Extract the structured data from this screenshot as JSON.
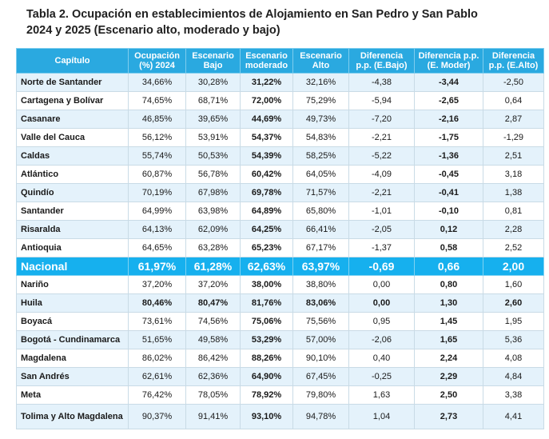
{
  "title_line1": "Tabla 2. Ocupación en establecimientos de Alojamiento en San Pedro y San Pablo",
  "title_line2": "2024 y 2025 (Escenario alto, moderado y bajo)",
  "headers": {
    "capitulo": "Capítulo",
    "ocup_l1": "Ocupación",
    "ocup_l2": "(%) 2024",
    "bajo_l1": "Escenario",
    "bajo_l2": "Bajo",
    "mod_l1": "Escenario",
    "mod_l2": "moderado",
    "alto_l1": "Escenario",
    "alto_l2": "Alto",
    "dbajo_l1": "Diferencia",
    "dbajo_l2": "p.p. (E.Bajo)",
    "dmod_l1": "Diferencia p.p.",
    "dmod_l2": "(E. Moder)",
    "dalto_l1": "Diferencia",
    "dalto_l2": "p.p. (E.Alto)"
  },
  "rows": [
    {
      "cap": "Norte de Santander",
      "ocup": "34,66%",
      "bajo": "30,28%",
      "mod": "31,22%",
      "alto": "32,16%",
      "dbajo": "-4,38",
      "dmod": "-3,44",
      "dalto": "-2,50"
    },
    {
      "cap": "Cartagena y Bolívar",
      "ocup": "74,65%",
      "bajo": "68,71%",
      "mod": "72,00%",
      "alto": "75,29%",
      "dbajo": "-5,94",
      "dmod": "-2,65",
      "dalto": "0,64"
    },
    {
      "cap": "Casanare",
      "ocup": "46,85%",
      "bajo": "39,65%",
      "mod": "44,69%",
      "alto": "49,73%",
      "dbajo": "-7,20",
      "dmod": "-2,16",
      "dalto": "2,87"
    },
    {
      "cap": "Valle del Cauca",
      "ocup": "56,12%",
      "bajo": "53,91%",
      "mod": "54,37%",
      "alto": "54,83%",
      "dbajo": "-2,21",
      "dmod": "-1,75",
      "dalto": "-1,29"
    },
    {
      "cap": "Caldas",
      "ocup": "55,74%",
      "bajo": "50,53%",
      "mod": "54,39%",
      "alto": "58,25%",
      "dbajo": "-5,22",
      "dmod": "-1,36",
      "dalto": "2,51"
    },
    {
      "cap": "Atlántico",
      "ocup": "60,87%",
      "bajo": "56,78%",
      "mod": "60,42%",
      "alto": "64,05%",
      "dbajo": "-4,09",
      "dmod": "-0,45",
      "dalto": "3,18"
    },
    {
      "cap": "Quindío",
      "ocup": "70,19%",
      "bajo": "67,98%",
      "mod": "69,78%",
      "alto": "71,57%",
      "dbajo": "-2,21",
      "dmod": "-0,41",
      "dalto": "1,38"
    },
    {
      "cap": "Santander",
      "ocup": "64,99%",
      "bajo": "63,98%",
      "mod": "64,89%",
      "alto": "65,80%",
      "dbajo": "-1,01",
      "dmod": "-0,10",
      "dalto": "0,81"
    },
    {
      "cap": "Risaralda",
      "ocup": "64,13%",
      "bajo": "62,09%",
      "mod": "64,25%",
      "alto": "66,41%",
      "dbajo": "-2,05",
      "dmod": "0,12",
      "dalto": "2,28"
    },
    {
      "cap": "Antioquia",
      "ocup": "64,65%",
      "bajo": "63,28%",
      "mod": "65,23%",
      "alto": "67,17%",
      "dbajo": "-1,37",
      "dmod": "0,58",
      "dalto": "2,52"
    }
  ],
  "nacional": {
    "cap": "Nacional",
    "ocup": "61,97%",
    "bajo": "61,28%",
    "mod": "62,63%",
    "alto": "63,97%",
    "dbajo": "-0,69",
    "dmod": "0,66",
    "dalto": "2,00"
  },
  "rows2": [
    {
      "cap": "Nariño",
      "ocup": "37,20%",
      "bajo": "37,20%",
      "mod": "38,00%",
      "alto": "38,80%",
      "dbajo": "0,00",
      "dmod": "0,80",
      "dalto": "1,60"
    },
    {
      "cap": "Huila",
      "ocup": "80,46%",
      "bajo": "80,47%",
      "mod": "81,76%",
      "alto": "83,06%",
      "dbajo": "0,00",
      "dmod": "1,30",
      "dalto": "2,60"
    },
    {
      "cap": "Boyacá",
      "ocup": "73,61%",
      "bajo": "74,56%",
      "mod": "75,06%",
      "alto": "75,56%",
      "dbajo": "0,95",
      "dmod": "1,45",
      "dalto": "1,95"
    },
    {
      "cap": "Bogotá - Cundinamarca",
      "ocup": "51,65%",
      "bajo": "49,58%",
      "mod": "53,29%",
      "alto": "57,00%",
      "dbajo": "-2,06",
      "dmod": "1,65",
      "dalto": "5,36"
    },
    {
      "cap": "Magdalena",
      "ocup": "86,02%",
      "bajo": "86,42%",
      "mod": "88,26%",
      "alto": "90,10%",
      "dbajo": "0,40",
      "dmod": "2,24",
      "dalto": "4,08"
    },
    {
      "cap": "San Andrés",
      "ocup": "62,61%",
      "bajo": "62,36%",
      "mod": "64,90%",
      "alto": "67,45%",
      "dbajo": "-0,25",
      "dmod": "2,29",
      "dalto": "4,84"
    },
    {
      "cap": "Meta",
      "ocup": "76,42%",
      "bajo": "78,05%",
      "mod": "78,92%",
      "alto": "79,80%",
      "dbajo": "1,63",
      "dmod": "2,50",
      "dalto": "3,38"
    },
    {
      "cap": "Tolima y Alto Magdalena",
      "ocup": "90,37%",
      "bajo": "91,41%",
      "mod": "93,10%",
      "alto": "94,78%",
      "dbajo": "1,04",
      "dmod": "2,73",
      "dalto": "4,41"
    }
  ]
}
